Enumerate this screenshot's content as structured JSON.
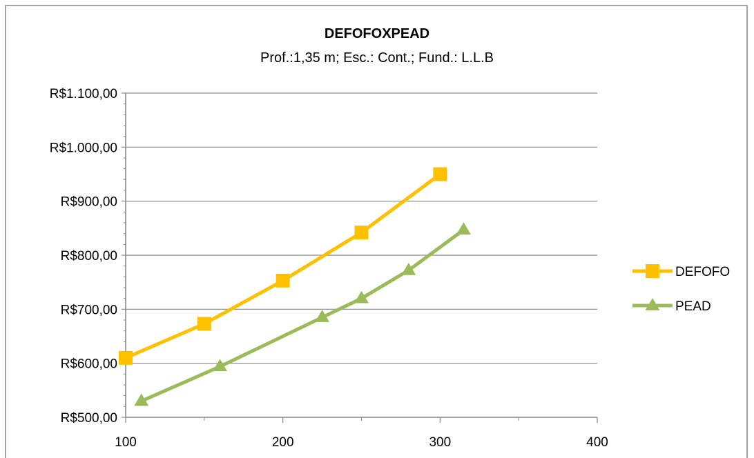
{
  "chart_data": {
    "type": "line",
    "title": "DEFOFOXPEAD",
    "subtitle": "Prof.:1,35 m; Esc.: Cont.; Fund.: L.L.B",
    "xlabel": "",
    "ylabel": "",
    "xlim": [
      100,
      400
    ],
    "ylim": [
      500,
      1100
    ],
    "x_ticks": [
      100,
      200,
      300,
      400
    ],
    "x_tick_labels": [
      "100",
      "200",
      "300",
      "400"
    ],
    "x_minor_ticks": [
      150,
      250,
      350
    ],
    "y_ticks": [
      500,
      600,
      700,
      800,
      900,
      1000,
      1100
    ],
    "y_tick_labels": [
      "R$500,00",
      "R$600,00",
      "R$700,00",
      "R$800,00",
      "R$900,00",
      "R$1.000,00",
      "R$1.100,00"
    ],
    "grid": true,
    "legend_position": "right",
    "series": [
      {
        "name": "DEFOFO",
        "color": "#FFC000",
        "marker": "square",
        "points": [
          [
            100,
            610
          ],
          [
            150,
            673
          ],
          [
            200,
            753
          ],
          [
            250,
            842
          ],
          [
            300,
            950
          ]
        ]
      },
      {
        "name": "PEAD",
        "color": "#9BBB59",
        "marker": "triangle",
        "points": [
          [
            110,
            530
          ],
          [
            160,
            594
          ],
          [
            225,
            685
          ],
          [
            250,
            720
          ],
          [
            280,
            772
          ],
          [
            315,
            847
          ]
        ]
      }
    ]
  }
}
